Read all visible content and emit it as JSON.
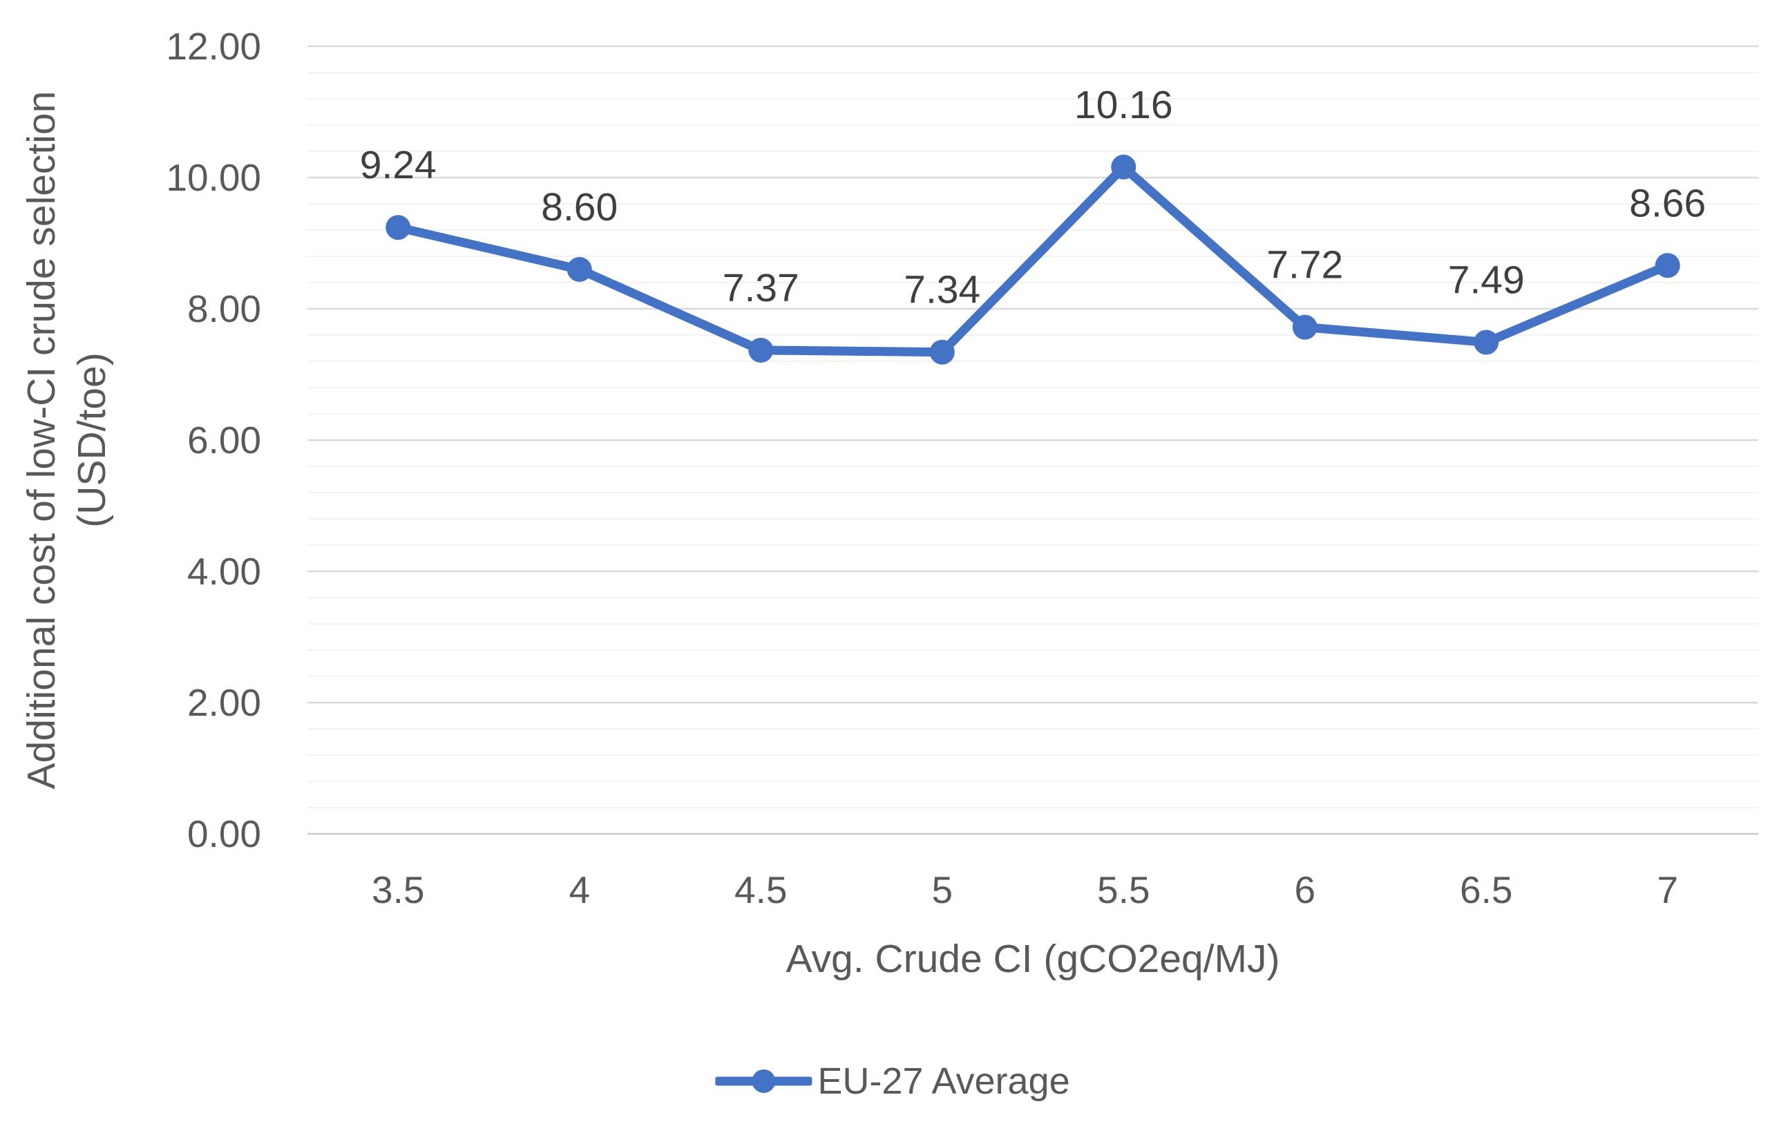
{
  "chart_data": {
    "type": "line",
    "title": "",
    "categories": [
      "3.5",
      "4",
      "4.5",
      "5",
      "5.5",
      "6",
      "6.5",
      "7"
    ],
    "series": [
      {
        "name": "EU-27 Average",
        "values": [
          9.24,
          8.6,
          7.37,
          7.34,
          10.16,
          7.72,
          7.49,
          8.66
        ],
        "point_labels": [
          "9.24",
          "8.60",
          "7.37",
          "7.34",
          "10.16",
          "7.72",
          "7.49",
          "8.66"
        ],
        "color": "#4472C4",
        "marker": "circle"
      }
    ],
    "xlabel": "Avg. Crude CI (gCO2eq/MJ)",
    "ylabel": "Additional cost of low-CI crude selection (USD/toe)",
    "ylabel_lines": [
      "Additional cost of low-CI crude selection",
      "(USD/toe)"
    ],
    "ylim": [
      0,
      12
    ],
    "y_major_unit": 2,
    "y_minor_unit": 0.4,
    "y_tick_labels": [
      "0.00",
      "2.00",
      "4.00",
      "6.00",
      "8.00",
      "10.00",
      "12.00"
    ],
    "grid": {
      "horizontal_major": true,
      "horizontal_minor": true,
      "vertical": false
    },
    "legend_position": "bottom",
    "colors": {
      "series_line": "#4472C4",
      "major_gridline": "#D9D9D9",
      "minor_gridline": "#F2F2F2",
      "axis_line": "#C9C9C9",
      "tick_text": "#595959",
      "axis_title_text": "#595959",
      "data_label_text": "#3F3F3F",
      "background": "#FFFFFF"
    }
  }
}
